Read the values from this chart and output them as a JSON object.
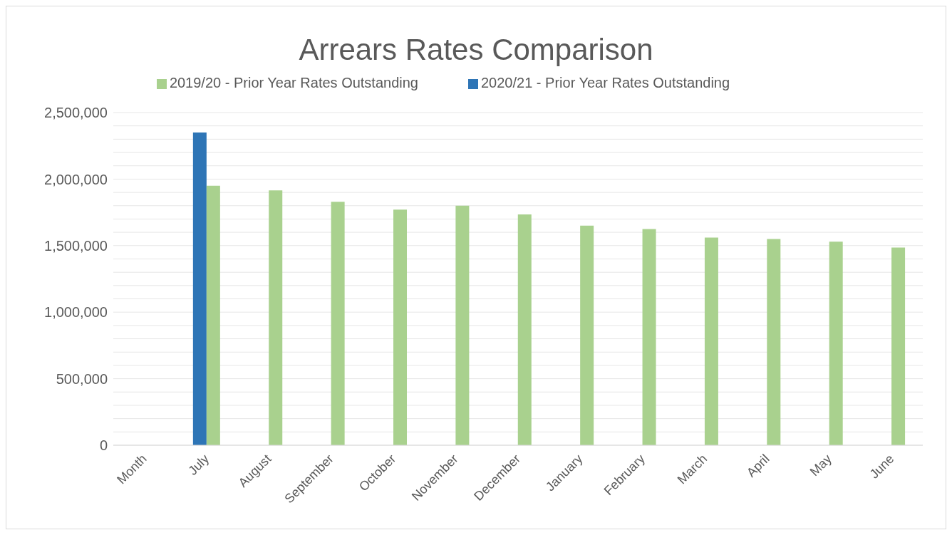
{
  "chart_data": {
    "type": "bar",
    "title": "Arrears Rates Comparison",
    "categories": [
      "Month",
      "July",
      "August",
      "September",
      "October",
      "November",
      "December",
      "January",
      "February",
      "March",
      "April",
      "May",
      "June"
    ],
    "series": [
      {
        "name": "2020/21 - Prior Year Rates Outstanding",
        "color": "#2e75b6",
        "values": [
          null,
          2350000,
          null,
          null,
          null,
          null,
          null,
          null,
          null,
          null,
          null,
          null,
          null
        ]
      },
      {
        "name": "2019/20 - Prior Year Rates Outstanding",
        "color": "#a9d18e",
        "values": [
          null,
          1950000,
          1915000,
          1830000,
          1770000,
          1800000,
          1735000,
          1650000,
          1625000,
          1560000,
          1550000,
          1530000,
          1485000
        ]
      }
    ],
    "ylim": [
      0,
      2500000
    ],
    "yticks": [
      0,
      {
        "value": 100000,
        "label": null
      },
      {
        "value": 200000,
        "label": null
      },
      {
        "value": 300000,
        "label": null
      },
      {
        "value": 400000,
        "label": null
      },
      {
        "value": 500000,
        "label": "500,000"
      },
      {
        "value": 600000,
        "label": null
      },
      {
        "value": 700000,
        "label": null
      },
      {
        "value": 800000,
        "label": null
      },
      {
        "value": 900000,
        "label": null
      },
      {
        "value": 1000000,
        "label": "1,000,000"
      },
      {
        "value": 1100000,
        "label": null
      },
      {
        "value": 1200000,
        "label": null
      },
      {
        "value": 1300000,
        "label": null
      },
      {
        "value": 1400000,
        "label": null
      },
      {
        "value": 1500000,
        "label": "1,500,000"
      },
      {
        "value": 1600000,
        "label": null
      },
      {
        "value": 1700000,
        "label": null
      },
      {
        "value": 1800000,
        "label": null
      },
      {
        "value": 1900000,
        "label": null
      },
      {
        "value": 2000000,
        "label": "2,000,000"
      },
      {
        "value": 2100000,
        "label": null
      },
      {
        "value": 2200000,
        "label": null
      },
      {
        "value": 2300000,
        "label": null
      },
      {
        "value": 2400000,
        "label": null
      },
      {
        "value": 2500000,
        "label": "2,500,000"
      }
    ],
    "grid": "y",
    "legend": "top"
  }
}
